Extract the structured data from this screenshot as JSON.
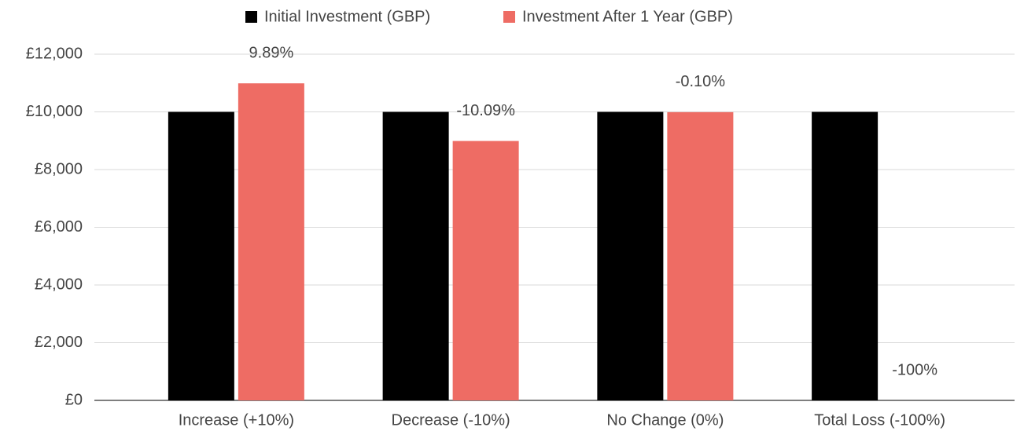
{
  "chart_data": {
    "type": "bar",
    "categories": [
      "Increase (+10%)",
      "Decrease (-10%)",
      "No Change (0%)",
      "Total Loss (-100%)"
    ],
    "series": [
      {
        "name": "Initial Investment (GBP)",
        "color": "#000000",
        "values": [
          10000,
          10000,
          10000,
          10000
        ]
      },
      {
        "name": "Investment After 1 Year (GBP)",
        "color": "#ee6c64",
        "values": [
          10989,
          8991,
          9990,
          0
        ]
      }
    ],
    "annotations": [
      "9.89%",
      "-10.09%",
      "-0.10%",
      "-100%"
    ],
    "ylim": [
      0,
      12000
    ],
    "yticks": [
      {
        "value": 0,
        "label": "£0"
      },
      {
        "value": 2000,
        "label": "£2,000"
      },
      {
        "value": 4000,
        "label": "£4,000"
      },
      {
        "value": 6000,
        "label": "£6,000"
      },
      {
        "value": 8000,
        "label": "£8,000"
      },
      {
        "value": 10000,
        "label": "£10,000"
      },
      {
        "value": 12000,
        "label": "£12,000"
      }
    ],
    "grid": true,
    "legend": "top"
  }
}
